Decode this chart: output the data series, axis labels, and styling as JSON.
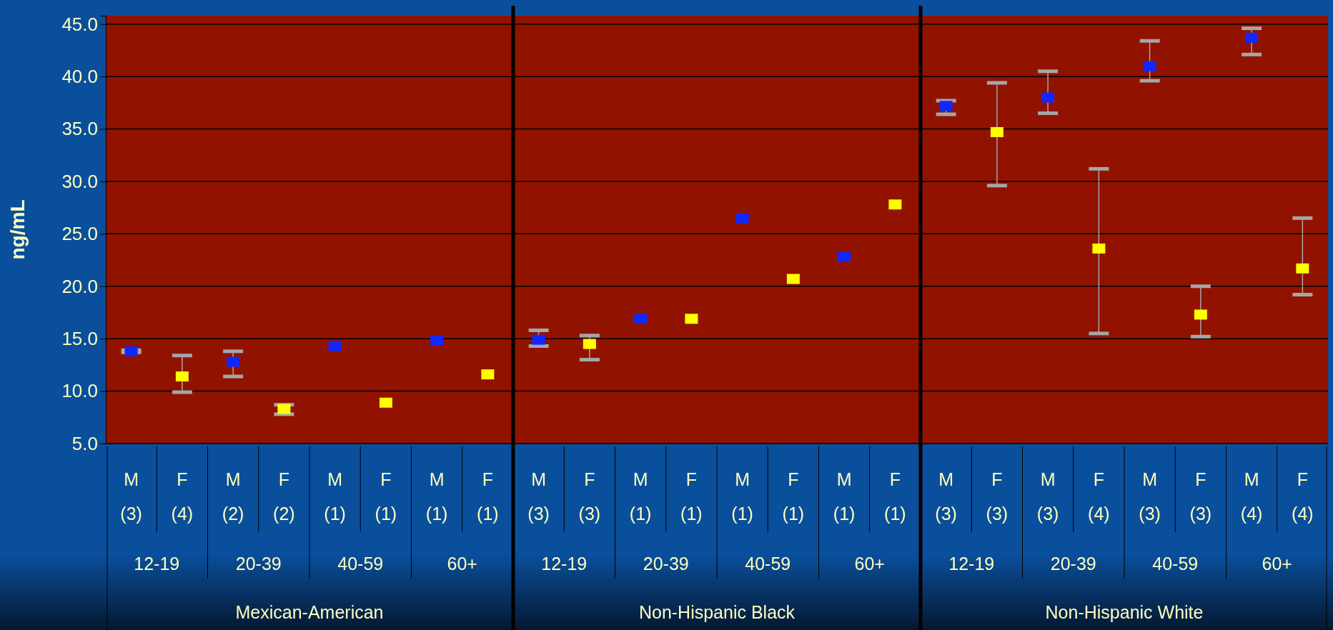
{
  "chart_data": {
    "type": "scatter",
    "ylabel": "ng/mL",
    "categories": [
      "M (3)",
      "F (4)",
      "M (2)",
      "F (2)",
      "M (1)",
      "F (1)",
      "M (1)",
      "F (1)",
      "M (3)",
      "F (3)",
      "M (1)",
      "F (1)",
      "M (1)",
      "F (1)",
      "M (1)",
      "F (1)",
      "M (3)",
      "F (3)",
      "M (3)",
      "F (4)",
      "M (3)",
      "F (3)",
      "M (4)",
      "F (4)"
    ],
    "values": [
      13.8,
      11.4,
      12.8,
      8.3,
      14.3,
      8.9,
      14.8,
      11.6,
      14.9,
      14.5,
      16.9,
      16.9,
      26.5,
      20.7,
      22.8,
      27.8,
      37.2,
      34.7,
      38.0,
      23.6,
      41.0,
      17.3,
      43.7,
      21.7
    ],
    "colors": [
      "#1028ff",
      "#ffff00",
      "#1028ff",
      "#ffff00",
      "#1028ff",
      "#ffff00",
      "#1028ff",
      "#ffff00",
      "#1028ff",
      "#ffff00",
      "#1028ff",
      "#ffff00",
      "#1028ff",
      "#ffff00",
      "#1028ff",
      "#ffff00",
      "#1028ff",
      "#ffff00",
      "#1028ff",
      "#ffff00",
      "#1028ff",
      "#ffff00",
      "#1028ff",
      "#ffff00"
    ],
    "errors": [
      [
        13.7,
        13.9
      ],
      [
        9.9,
        13.4
      ],
      [
        11.4,
        13.8
      ],
      [
        7.8,
        8.7
      ],
      null,
      null,
      null,
      null,
      [
        14.3,
        15.8
      ],
      [
        13.0,
        15.3
      ],
      null,
      null,
      null,
      null,
      null,
      null,
      [
        36.4,
        37.7
      ],
      [
        29.6,
        39.4
      ],
      [
        36.5,
        40.5
      ],
      [
        15.5,
        31.2
      ],
      [
        39.6,
        43.4
      ],
      [
        15.2,
        20.0
      ],
      [
        42.1,
        44.6
      ],
      [
        19.2,
        26.5
      ]
    ],
    "marker": "square",
    "ylim": [
      5,
      45.8
    ],
    "yticks": [
      {
        "value": 5,
        "label": "5.0"
      },
      {
        "value": 10,
        "label": "10.0"
      },
      {
        "value": 15,
        "label": "15.0"
      },
      {
        "value": 20,
        "label": "20.0"
      },
      {
        "value": 25,
        "label": "25.0"
      },
      {
        "value": 30,
        "label": "30.0"
      },
      {
        "value": 35,
        "label": "35.0"
      },
      {
        "value": 40,
        "label": "40.0"
      },
      {
        "value": 45,
        "label": "45.0"
      }
    ],
    "grid": "y",
    "annotations": [
      "12-19",
      "20-39",
      "40-59",
      "60+",
      "12-19",
      "20-39",
      "40-59",
      "60+",
      "12-19",
      "20-39",
      "40-59",
      "60+",
      "Mexican-American",
      "Non-Hispanic Black",
      "Non-Hispanic White"
    ]
  }
}
